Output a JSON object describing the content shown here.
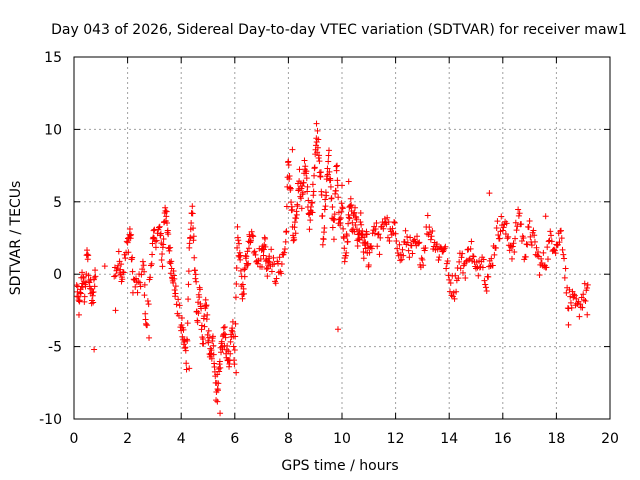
{
  "chart_data": {
    "type": "scatter",
    "title": "Day 043 of 2026, Sidereal Day-to-day VTEC variation (SDTVAR) for receiver maw1",
    "xlabel": "GPS time / hours",
    "ylabel": "SDTVAR / TECUs",
    "xlim": [
      0,
      20
    ],
    "ylim": [
      -10,
      15
    ],
    "xticks": [
      "0",
      "2",
      "4",
      "6",
      "8",
      "10",
      "12",
      "14",
      "16",
      "18",
      "20"
    ],
    "yticks": [
      "-10",
      "-5",
      "0",
      "5",
      "10",
      "15"
    ],
    "grid": true,
    "marker": "+",
    "series": [
      {
        "name": "SDTVAR",
        "color": "#ff0000",
        "trace": [
          [
            0.1,
            -1.0
          ],
          [
            0.2,
            -2.5
          ],
          [
            0.3,
            0.0
          ],
          [
            0.4,
            -1.5
          ],
          [
            0.5,
            1.5
          ],
          [
            0.6,
            -1.0
          ],
          [
            0.7,
            -2.0
          ],
          [
            0.8,
            0.5
          ],
          [
            1.5,
            0.0
          ],
          [
            1.7,
            1.0
          ],
          [
            1.8,
            0.0
          ],
          [
            2.0,
            2.0
          ],
          [
            2.1,
            3.0
          ],
          [
            2.2,
            -0.5
          ],
          [
            2.4,
            -1.0
          ],
          [
            2.6,
            0.5
          ],
          [
            2.7,
            -4.0
          ],
          [
            2.9,
            1.5
          ],
          [
            3.0,
            2.5
          ],
          [
            3.2,
            3.0
          ],
          [
            3.3,
            1.0
          ],
          [
            3.4,
            5.0
          ],
          [
            3.5,
            2.5
          ],
          [
            3.6,
            1.0
          ],
          [
            3.7,
            0.0
          ],
          [
            3.8,
            -1.5
          ],
          [
            4.0,
            -3.5
          ],
          [
            4.1,
            -4.5
          ],
          [
            4.2,
            -6.0
          ],
          [
            4.3,
            1.5
          ],
          [
            4.4,
            4.5
          ],
          [
            4.5,
            1.0
          ],
          [
            4.6,
            -3.0
          ],
          [
            4.7,
            -1.5
          ],
          [
            4.8,
            -5.0
          ],
          [
            4.9,
            -2.0
          ],
          [
            5.0,
            -4.0
          ],
          [
            5.1,
            -6.0
          ],
          [
            5.2,
            -4.5
          ],
          [
            5.3,
            -8.0
          ],
          [
            5.4,
            -7.0
          ],
          [
            5.5,
            -5.0
          ],
          [
            5.6,
            -4.0
          ],
          [
            5.7,
            -5.5
          ],
          [
            5.8,
            -6.5
          ],
          [
            5.9,
            -3.0
          ],
          [
            6.0,
            -6.0
          ],
          [
            6.1,
            2.5
          ],
          [
            6.2,
            1.0
          ],
          [
            6.3,
            -1.5
          ],
          [
            6.4,
            0.5
          ],
          [
            6.5,
            1.5
          ],
          [
            6.6,
            3.0
          ],
          [
            6.8,
            1.5
          ],
          [
            7.0,
            1.0
          ],
          [
            7.1,
            2.5
          ],
          [
            7.2,
            0.5
          ],
          [
            7.3,
            1.5
          ],
          [
            7.5,
            0.0
          ],
          [
            7.7,
            0.5
          ],
          [
            7.9,
            2.0
          ],
          [
            8.0,
            8.0
          ],
          [
            8.1,
            5.0
          ],
          [
            8.2,
            2.0
          ],
          [
            8.3,
            4.0
          ],
          [
            8.4,
            7.0
          ],
          [
            8.5,
            5.0
          ],
          [
            8.6,
            7.5
          ],
          [
            8.7,
            6.0
          ],
          [
            8.8,
            3.5
          ],
          [
            8.9,
            5.0
          ],
          [
            9.0,
            8.5
          ],
          [
            9.1,
            9.5
          ],
          [
            9.2,
            7.0
          ],
          [
            9.3,
            2.0
          ],
          [
            9.4,
            5.5
          ],
          [
            9.5,
            8.5
          ],
          [
            9.6,
            5.0
          ],
          [
            9.7,
            3.0
          ],
          [
            9.8,
            7.5
          ],
          [
            9.9,
            3.0
          ],
          [
            10.0,
            5.5
          ],
          [
            10.1,
            1.0
          ],
          [
            10.2,
            2.5
          ],
          [
            10.3,
            5.0
          ],
          [
            10.4,
            3.0
          ],
          [
            10.5,
            4.0
          ],
          [
            10.6,
            2.0
          ],
          [
            10.7,
            3.5
          ],
          [
            10.8,
            1.5
          ],
          [
            10.9,
            2.5
          ],
          [
            11.0,
            1.0
          ],
          [
            11.2,
            3.5
          ],
          [
            11.4,
            2.0
          ],
          [
            11.6,
            4.0
          ],
          [
            11.8,
            2.5
          ],
          [
            12.0,
            3.0
          ],
          [
            12.2,
            1.0
          ],
          [
            12.4,
            2.5
          ],
          [
            12.6,
            1.5
          ],
          [
            12.8,
            2.0
          ],
          [
            13.0,
            1.0
          ],
          [
            13.2,
            3.5
          ],
          [
            13.4,
            2.5
          ],
          [
            13.6,
            1.5
          ],
          [
            13.8,
            2.0
          ],
          [
            14.0,
            -0.5
          ],
          [
            14.2,
            -1.0
          ],
          [
            14.4,
            1.0
          ],
          [
            14.6,
            0.5
          ],
          [
            14.8,
            2.0
          ],
          [
            15.0,
            0.0
          ],
          [
            15.2,
            1.5
          ],
          [
            15.4,
            -0.5
          ],
          [
            15.6,
            1.0
          ],
          [
            15.8,
            3.0
          ],
          [
            16.0,
            3.5
          ],
          [
            16.2,
            2.5
          ],
          [
            16.4,
            1.5
          ],
          [
            16.6,
            4.5
          ],
          [
            16.8,
            1.5
          ],
          [
            17.0,
            3.0
          ],
          [
            17.2,
            2.0
          ],
          [
            17.4,
            0.5
          ],
          [
            17.6,
            1.0
          ],
          [
            17.8,
            2.5
          ],
          [
            18.0,
            2.0
          ],
          [
            18.2,
            3.0
          ],
          [
            18.4,
            -1.5
          ],
          [
            18.6,
            -2.0
          ],
          [
            18.8,
            -2.5
          ],
          [
            19.0,
            -1.5
          ],
          [
            19.2,
            -1.0
          ]
        ],
        "outliers": [
          [
            0.75,
            -5.2
          ],
          [
            1.55,
            -2.5
          ],
          [
            2.8,
            -4.4
          ],
          [
            4.3,
            -6.5
          ],
          [
            5.35,
            -8.8
          ],
          [
            5.45,
            -9.6
          ],
          [
            6.05,
            -6.8
          ],
          [
            8.15,
            8.6
          ],
          [
            9.05,
            10.4
          ],
          [
            9.85,
            -3.8
          ],
          [
            10.25,
            6.4
          ],
          [
            15.5,
            5.6
          ],
          [
            17.6,
            4.0
          ],
          [
            18.45,
            -3.5
          ],
          [
            19.15,
            -2.8
          ]
        ]
      }
    ]
  },
  "colors": {
    "points": "#ff0000",
    "grid": "#a0a0a0",
    "frame": "#000000",
    "background": "#ffffff"
  }
}
